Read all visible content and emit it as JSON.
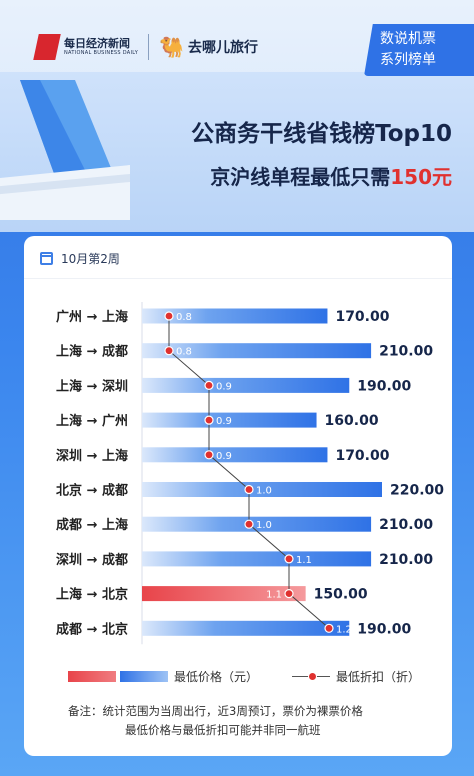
{
  "header": {
    "brand_nbd_cn": "每日经济新闻",
    "brand_nbd_en": "NATIONAL BUSINESS DAILY",
    "brand_qunar": "去哪儿旅行",
    "series_line1": "数说机票",
    "series_line2": "系列榜单",
    "title": "公商务干线省钱榜Top10",
    "subtitle_prefix": "京沪线单程最低只需",
    "subtitle_price": "150元"
  },
  "card": {
    "week": "10月第2周"
  },
  "legend": {
    "price_label": "最低价格（元）",
    "discount_label": "最低折扣（折）"
  },
  "note": {
    "line1": "备注：统计范围为当周出行，近3周预订，票价为裸票价格",
    "line2": "最低价格与最低折扣可能并非同一航班"
  },
  "colors": {
    "bar_blue": "#2f72e6",
    "bar_red": "#e8444a",
    "discount_dot": "#e0312f"
  },
  "chart_data": {
    "type": "bar",
    "orientation": "horizontal",
    "categories": [
      "广州 → 上海",
      "上海 → 成都",
      "上海 → 深圳",
      "上海 → 广州",
      "深圳 → 上海",
      "北京 → 成都",
      "成都 → 上海",
      "深圳 → 成都",
      "上海 → 北京",
      "成都 → 北京"
    ],
    "series": [
      {
        "name": "最低价格（元）",
        "type": "bar",
        "values": [
          170,
          210,
          190,
          160,
          170,
          220,
          210,
          210,
          150,
          190
        ],
        "labels": [
          "170.00",
          "210.00",
          "190.00",
          "160.00",
          "170.00",
          "220.00",
          "210.00",
          "210.00",
          "150.00",
          "190.00"
        ]
      },
      {
        "name": "最低折扣（折）",
        "type": "line",
        "values": [
          0.8,
          0.8,
          0.9,
          0.9,
          0.9,
          1.0,
          1.0,
          1.1,
          1.1,
          1.2
        ],
        "labels": [
          "0.8",
          "0.8",
          "0.9",
          "0.9",
          "0.9",
          "1.0",
          "1.0",
          "1.1",
          "1.1",
          "1.2"
        ]
      }
    ],
    "highlight_index": 8,
    "xlim": [
      0,
      240
    ]
  }
}
